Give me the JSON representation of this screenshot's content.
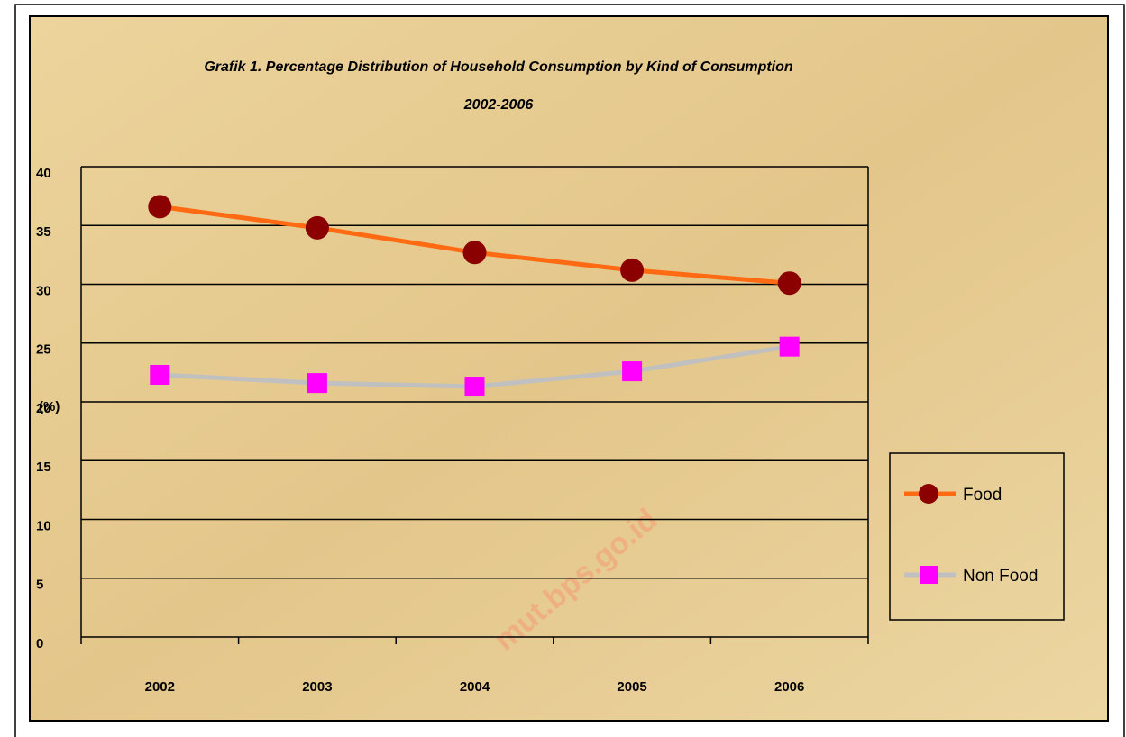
{
  "chart_data": {
    "type": "line",
    "title": "Grafik 1. Percentage Distribution of Household Consumption by Kind of Consumption",
    "subtitle": "2002-2006",
    "y_label": "(%)",
    "watermark": "mut.bps.go.id",
    "categories": [
      "2002",
      "2003",
      "2004",
      "2005",
      "2006"
    ],
    "series": [
      {
        "name": "Food",
        "color": "#ff6a13",
        "marker_color": "#8b0000",
        "marker": "circle",
        "values": [
          36.6,
          34.8,
          32.7,
          31.2,
          30.1
        ]
      },
      {
        "name": "Non Food",
        "color": "#c0c0c0",
        "marker_color": "#ff00ff",
        "marker": "square",
        "values": [
          22.3,
          21.6,
          21.3,
          22.6,
          24.7
        ]
      }
    ],
    "ylim": [
      0,
      40
    ],
    "yticks": [
      0,
      5,
      10,
      15,
      20,
      25,
      30,
      35,
      40
    ],
    "grid": true,
    "legend": "right"
  }
}
